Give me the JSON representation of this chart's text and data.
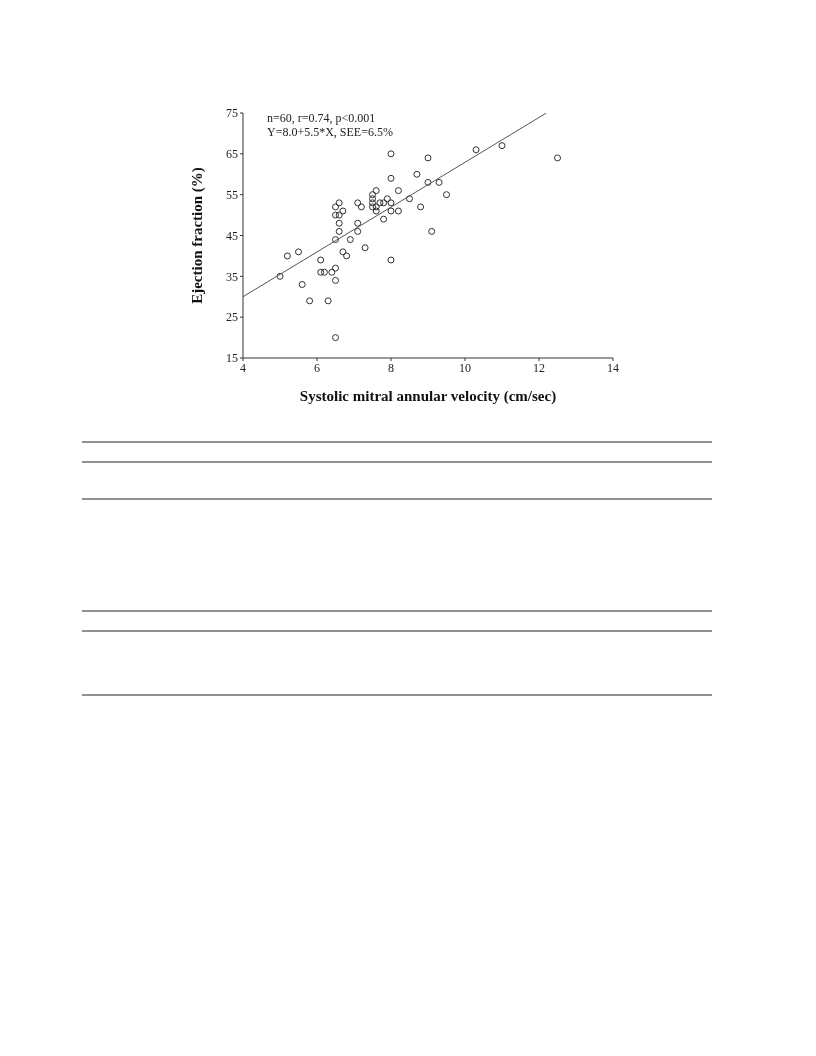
{
  "chart_data": {
    "type": "scatter",
    "xlabel": "Systolic mitral annular velocity (cm/sec)",
    "ylabel": "Ejection fraction (%)",
    "annotations": [
      "n=60, r=0.74, p<0.001",
      "Y=8.0+5.5*X, SEE=6.5%"
    ],
    "xlim": [
      4,
      14
    ],
    "xticks": [
      4,
      6,
      8,
      10,
      12,
      14
    ],
    "ylim": [
      15,
      75
    ],
    "yticks": [
      15,
      25,
      35,
      45,
      55,
      65,
      75
    ],
    "series": [
      {
        "marker": "circle",
        "color": "#333333",
        "x": [
          5,
          5.2,
          5.5,
          5.6,
          5.8,
          6.1,
          6.1,
          6.2,
          6.3,
          6.4,
          6.5,
          6.5,
          6.5,
          6.5,
          6.5,
          6.5,
          6.6,
          6.6,
          6.6,
          6.6,
          6.7,
          6.7,
          6.8,
          6.9,
          7.1,
          7.1,
          7.1,
          7.2,
          7.3,
          7.5,
          7.5,
          7.5,
          7.5,
          7.6,
          7.6,
          7.6,
          7.7,
          7.8,
          7.8,
          7.9,
          8,
          8,
          8,
          8,
          8,
          8.2,
          8.2,
          8.5,
          8.7,
          8.8,
          9,
          9,
          9.1,
          9.3,
          9.5,
          10.3,
          11,
          12.5
        ],
        "values": [
          35,
          40,
          41,
          33,
          29,
          39,
          36,
          36,
          29,
          36,
          37,
          34,
          20,
          44,
          50,
          52,
          53,
          50,
          48,
          46,
          51,
          41,
          40,
          44,
          53,
          48,
          46,
          52,
          42,
          55,
          54,
          53,
          52,
          56,
          52,
          51,
          53,
          49,
          53,
          54,
          53,
          51,
          59,
          65,
          39,
          56,
          51,
          54,
          60,
          52,
          64,
          58,
          46,
          58,
          55,
          66,
          67,
          64
        ]
      },
      {
        "type": "line",
        "marker": "none",
        "color": "#555555",
        "x": [
          4,
          12.2
        ],
        "values": [
          30,
          75
        ]
      }
    ]
  }
}
